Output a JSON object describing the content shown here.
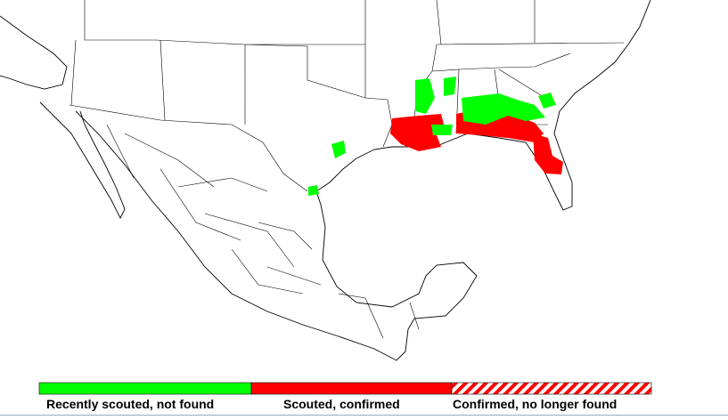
{
  "legend": {
    "items": [
      {
        "label": "Recently scouted, not found",
        "color": "#00ff00"
      },
      {
        "label": "Scouted, confirmed",
        "color": "#ff0000"
      },
      {
        "label": "Confirmed, no longer found",
        "color": "#ff0000",
        "hatched": true
      }
    ]
  }
}
